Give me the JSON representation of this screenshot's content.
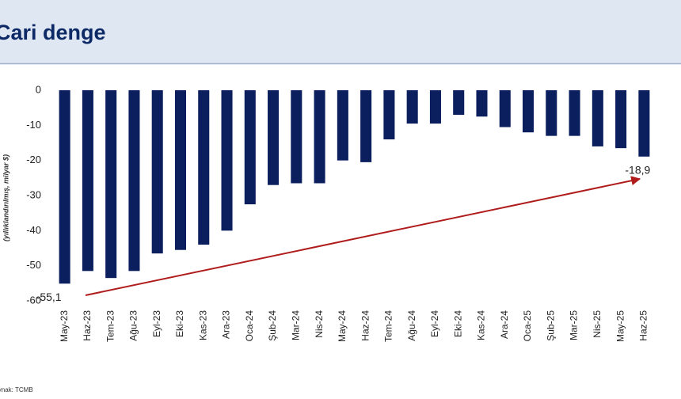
{
  "chart_data": {
    "type": "bar",
    "title": "Cari denge",
    "y_label": "(yıllıklandırılmış, milyar $)",
    "source": "Kaynak: TCMB",
    "categories": [
      "May-23",
      "Haz-23",
      "Tem-23",
      "Ağu-23",
      "Eyl-23",
      "Eki-23",
      "Kas-23",
      "Ara-23",
      "Oca-24",
      "Şub-24",
      "Mar-24",
      "Nis-24",
      "May-24",
      "Haz-24",
      "Tem-24",
      "Ağu-24",
      "Eyl-24",
      "Eki-24",
      "Kas-24",
      "Ara-24",
      "Oca-25",
      "Şub-25",
      "Mar-25",
      "Nis-25",
      "May-25",
      "Haz-25"
    ],
    "values": [
      -55.1,
      -51.5,
      -53.5,
      -51.5,
      -46.5,
      -45.5,
      -44,
      -40,
      -32.5,
      -27,
      -26.5,
      -26.5,
      -20,
      -20.5,
      -14,
      -9.5,
      -9.5,
      -7,
      -7.5,
      -10.5,
      -12,
      -13,
      -13,
      -16,
      -16.5,
      -18.9
    ],
    "value_labels": [
      "-55,1",
      null,
      null,
      null,
      null,
      null,
      null,
      null,
      null,
      null,
      null,
      null,
      null,
      null,
      null,
      null,
      null,
      null,
      null,
      null,
      null,
      null,
      null,
      null,
      null,
      "-18,9"
    ],
    "color": "#0b1f5e",
    "ylim": [
      -60,
      0
    ],
    "yticks": [
      0,
      -10,
      -20,
      -30,
      -40,
      -50,
      -60
    ],
    "grid": false
  }
}
